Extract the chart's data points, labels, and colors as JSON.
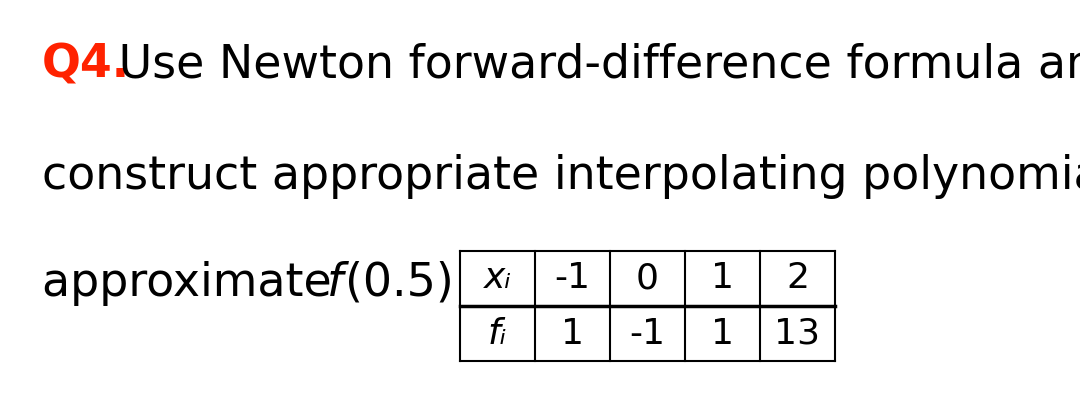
{
  "q_label": "Q4.",
  "q_color": "#FF2200",
  "line1_rest": " Use Newton forward-difference formula and",
  "line2": "construct appropriate interpolating polynomial and",
  "line3_pre": "approximate  ",
  "line3_f": "f",
  "line3_post": "(0.5)",
  "table_headers": [
    "xᵢ",
    "-1",
    "0",
    "1",
    "2"
  ],
  "table_row2": [
    "fᵢ",
    "1",
    "-1",
    "1",
    "13"
  ],
  "bg_color": "#ffffff",
  "text_color": "#000000",
  "font_size_main": 33,
  "font_size_table": 26
}
